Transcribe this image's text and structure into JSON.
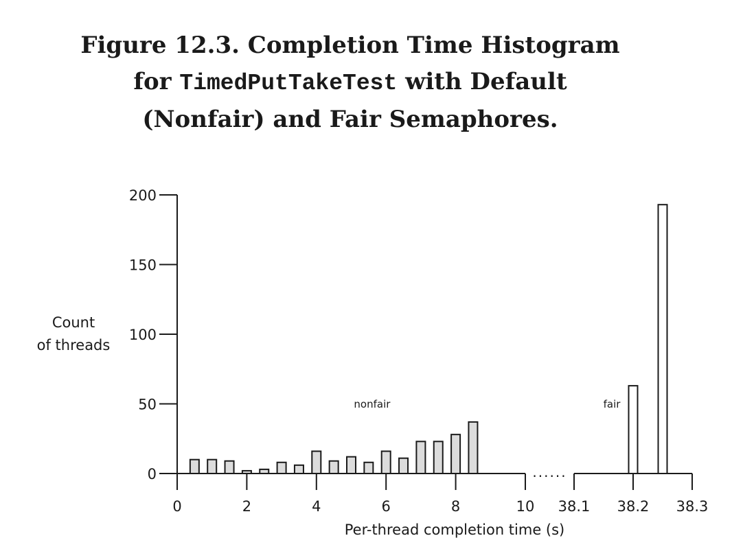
{
  "figure": {
    "title_line1": "Figure 12.3. Completion Time Histogram",
    "title_line2_pre": "for ",
    "title_line2_code": "TimedPutTakeTest",
    "title_line2_post": " with Default",
    "title_line3": "(Nonfair) and Fair Semaphores."
  },
  "chart_data": {
    "type": "bar",
    "xlabel": "Per-thread completion time (s)",
    "ylabel": [
      "Count",
      "of threads"
    ],
    "ylim": [
      0,
      200
    ],
    "yticks": [
      0,
      50,
      100,
      150,
      200
    ],
    "x_segments": [
      {
        "range": [
          0,
          10
        ],
        "ticks": [
          0,
          2,
          4,
          6,
          8,
          10
        ]
      },
      {
        "range": [
          38.1,
          38.3
        ],
        "ticks": [
          38.1,
          38.2,
          38.3
        ]
      }
    ],
    "axis_break": "......",
    "colors": {
      "nonfair": "#dcdcdc",
      "fair": "#ffffff",
      "stroke": "#1a1a1a"
    },
    "series": [
      {
        "name": "nonfair",
        "x": [
          0.5,
          1.0,
          1.5,
          2.0,
          2.5,
          3.0,
          3.5,
          4.0,
          4.5,
          5.0,
          5.5,
          6.0,
          6.5,
          7.0,
          7.5,
          8.0,
          8.5
        ],
        "values": [
          10,
          10,
          9,
          2,
          3,
          8,
          6,
          16,
          9,
          12,
          8,
          16,
          11,
          23,
          23,
          28,
          37
        ]
      },
      {
        "name": "fair",
        "x": [
          38.2,
          38.25
        ],
        "values": [
          63,
          193
        ]
      }
    ]
  }
}
